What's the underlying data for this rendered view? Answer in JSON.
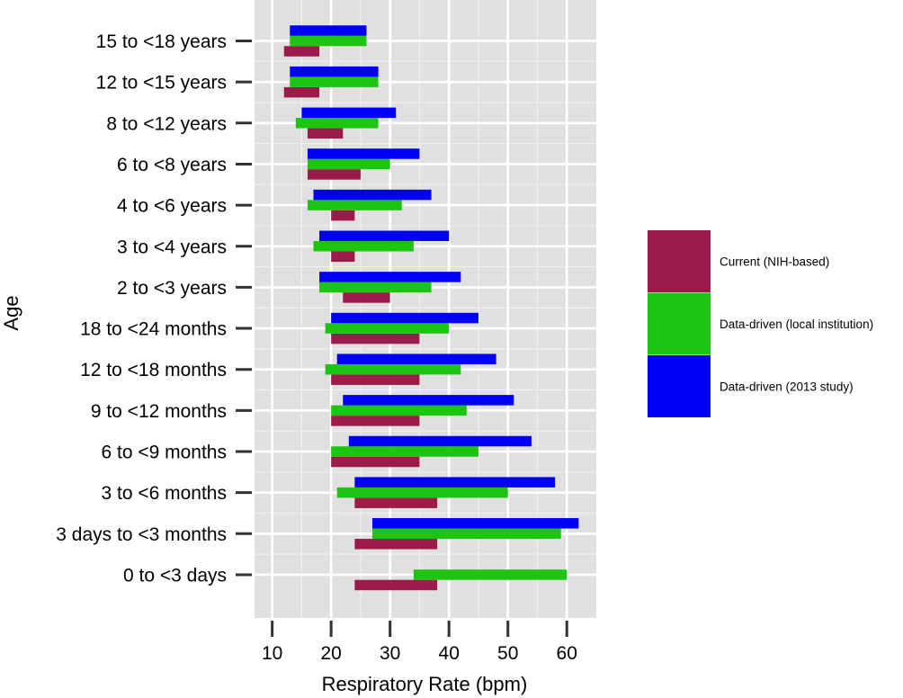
{
  "chart_data": {
    "type": "bar",
    "orientation": "horizontal-range",
    "xlabel": "Respiratory Rate (bpm)",
    "ylabel": "Age",
    "xlim": [
      7,
      65
    ],
    "xticks": [
      10,
      20,
      30,
      40,
      50,
      60
    ],
    "grid": true,
    "legend_position": "right",
    "categories": [
      "15 to <18 years",
      "12 to <15 years",
      "8 to <12 years",
      "6 to <8 years",
      "4 to <6 years",
      "3 to <4 years",
      "2 to <3 years",
      "18 to <24 months",
      "12 to <18 months",
      "9 to <12 months",
      "6 to <9 months",
      "3 to <6 months",
      "3 days to <3 months",
      "0 to <3 days"
    ],
    "series": [
      {
        "name": "Current (NIH-based)",
        "color": "#9b1b4a",
        "ranges": [
          [
            12,
            18
          ],
          [
            12,
            18
          ],
          [
            16,
            22
          ],
          [
            16,
            25
          ],
          [
            20,
            24
          ],
          [
            20,
            24
          ],
          [
            22,
            30
          ],
          [
            20,
            35
          ],
          [
            20,
            35
          ],
          [
            20,
            35
          ],
          [
            20,
            35
          ],
          [
            24,
            38
          ],
          [
            24,
            38
          ],
          [
            24,
            38
          ]
        ]
      },
      {
        "name": "Data-driven (local institution)",
        "color": "#1ec412",
        "ranges": [
          [
            13,
            26
          ],
          [
            13,
            28
          ],
          [
            14,
            28
          ],
          [
            16,
            30
          ],
          [
            16,
            32
          ],
          [
            17,
            34
          ],
          [
            18,
            37
          ],
          [
            19,
            40
          ],
          [
            19,
            42
          ],
          [
            20,
            43
          ],
          [
            20,
            45
          ],
          [
            21,
            50
          ],
          [
            27,
            59
          ],
          [
            34,
            60
          ]
        ]
      },
      {
        "name": "Data-driven (2013 study)",
        "color": "#0000f5",
        "ranges": [
          [
            13,
            26
          ],
          [
            13,
            28
          ],
          [
            15,
            31
          ],
          [
            16,
            35
          ],
          [
            17,
            37
          ],
          [
            18,
            40
          ],
          [
            18,
            42
          ],
          [
            20,
            45
          ],
          [
            21,
            48
          ],
          [
            22,
            51
          ],
          [
            23,
            54
          ],
          [
            24,
            58
          ],
          [
            27,
            62
          ],
          null
        ]
      }
    ]
  }
}
